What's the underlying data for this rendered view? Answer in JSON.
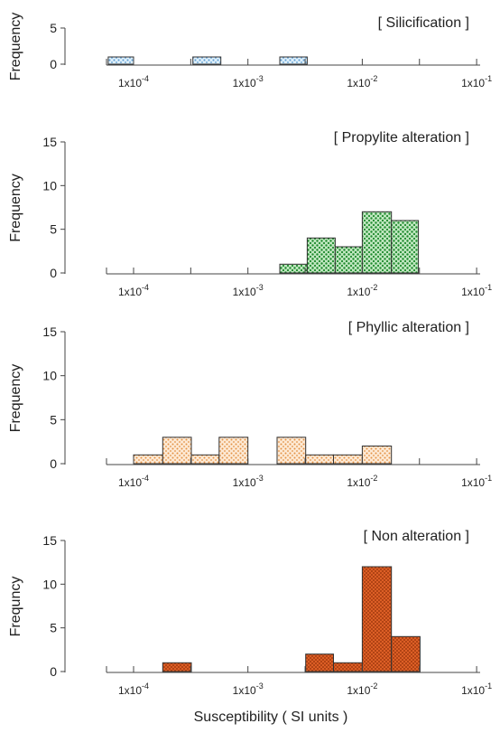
{
  "chart_data": [
    {
      "type": "bar",
      "title": "[ Silicification ]",
      "ylabel": "Frequency",
      "ylim": [
        0,
        5
      ],
      "yticks": [
        0,
        5
      ],
      "xscale": "log",
      "xlim": [
        5e-05,
        0.1
      ],
      "xtick_labels": [
        "1x10-4",
        "1x10-3",
        "1x10-2",
        "1x10-1"
      ],
      "bins": [
        {
          "x0": 6e-05,
          "x1": 0.0001,
          "value": 1
        },
        {
          "x0": 0.00033,
          "x1": 0.00058,
          "value": 1
        },
        {
          "x0": 0.0019,
          "x1": 0.0033,
          "value": 1
        }
      ],
      "color": "#aacde8"
    },
    {
      "type": "bar",
      "title": "[ Propylite alteration ]",
      "ylabel": "Frequency",
      "ylim": [
        0,
        15
      ],
      "yticks": [
        0,
        5,
        10,
        15
      ],
      "xscale": "log",
      "xlim": [
        5e-05,
        0.1
      ],
      "xtick_labels": [
        "1x10-4",
        "1x10-3",
        "1x10-2",
        "1x10-1"
      ],
      "bins": [
        {
          "x0": 0.0019,
          "x1": 0.0033,
          "value": 1
        },
        {
          "x0": 0.0033,
          "x1": 0.0058,
          "value": 4
        },
        {
          "x0": 0.0058,
          "x1": 0.01,
          "value": 3
        },
        {
          "x0": 0.01,
          "x1": 0.018,
          "value": 7
        },
        {
          "x0": 0.018,
          "x1": 0.031,
          "value": 6
        }
      ],
      "color": "#7cc27c"
    },
    {
      "type": "bar",
      "title": "[ Phyllic alteration ]",
      "ylabel": "Frequency",
      "ylim": [
        0,
        15
      ],
      "yticks": [
        0,
        5,
        10,
        15
      ],
      "xscale": "log",
      "xlim": [
        5e-05,
        0.1
      ],
      "xtick_labels": [
        "1x10-4",
        "1x10-3",
        "1x10-2",
        "1x10-1"
      ],
      "bins": [
        {
          "x0": 0.0001,
          "x1": 0.00018,
          "value": 1
        },
        {
          "x0": 0.00018,
          "x1": 0.00032,
          "value": 3
        },
        {
          "x0": 0.00032,
          "x1": 0.00056,
          "value": 1
        },
        {
          "x0": 0.00056,
          "x1": 0.001,
          "value": 3
        },
        {
          "x0": 0.0018,
          "x1": 0.0032,
          "value": 3
        },
        {
          "x0": 0.0032,
          "x1": 0.0056,
          "value": 1
        },
        {
          "x0": 0.0056,
          "x1": 0.01,
          "value": 1
        },
        {
          "x0": 0.01,
          "x1": 0.018,
          "value": 2
        }
      ],
      "color": "#f3c49a"
    },
    {
      "type": "bar",
      "title": "[ Non alteration ]",
      "ylabel": "Frequncy",
      "xlabel": "Susceptibility ( SI units )",
      "ylim": [
        0,
        15
      ],
      "yticks": [
        0,
        5,
        10,
        15
      ],
      "xscale": "log",
      "xlim": [
        5e-05,
        0.1
      ],
      "xtick_labels": [
        "1x10-4",
        "1x10-3",
        "1x10-2",
        "1x10-1"
      ],
      "bins": [
        {
          "x0": 0.00018,
          "x1": 0.00032,
          "value": 1
        },
        {
          "x0": 0.0032,
          "x1": 0.0056,
          "value": 2
        },
        {
          "x0": 0.0056,
          "x1": 0.01,
          "value": 1
        },
        {
          "x0": 0.01,
          "x1": 0.018,
          "value": 12
        },
        {
          "x0": 0.018,
          "x1": 0.032,
          "value": 4
        }
      ],
      "color": "#e8662a"
    }
  ]
}
